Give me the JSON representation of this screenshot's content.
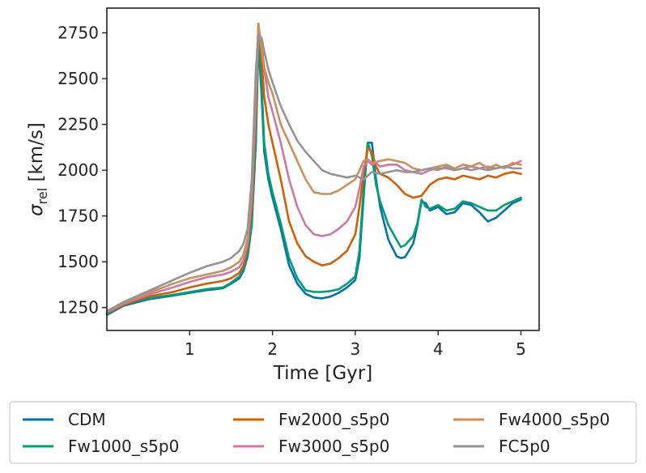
{
  "chart_data": {
    "type": "line",
    "title": "",
    "xlabel": "Time [Gyr]",
    "ylabel": "σ_rel [km/s]",
    "ylabel_symbol": "σ",
    "ylabel_subscript": "rel",
    "ylabel_unit": " [km/s]",
    "xlim": [
      0.0,
      5.22
    ],
    "ylim": [
      1125,
      2885
    ],
    "xticks": [
      1,
      2,
      3,
      4,
      5
    ],
    "xtick_labels": [
      "1",
      "2",
      "3",
      "4",
      "5"
    ],
    "yticks": [
      1250,
      1500,
      1750,
      2000,
      2250,
      2500,
      2750
    ],
    "ytick_labels": [
      "1250",
      "1500",
      "1750",
      "2000",
      "2250",
      "2500",
      "2750"
    ],
    "grid": false,
    "legend_position": "below, 3 columns",
    "series": [
      {
        "name": "CDM",
        "color": "#0072b2",
        "x": [
          0.0,
          0.2,
          0.5,
          0.8,
          1.0,
          1.2,
          1.4,
          1.5,
          1.6,
          1.65,
          1.7,
          1.75,
          1.8,
          1.83,
          1.87,
          1.9,
          1.95,
          2.0,
          2.1,
          2.2,
          2.3,
          2.4,
          2.5,
          2.6,
          2.7,
          2.8,
          2.9,
          3.0,
          3.05,
          3.1,
          3.15,
          3.2,
          3.25,
          3.3,
          3.4,
          3.5,
          3.55,
          3.6,
          3.7,
          3.75,
          3.8,
          3.85,
          3.9,
          4.0,
          4.1,
          4.2,
          4.3,
          4.4,
          4.5,
          4.6,
          4.7,
          4.8,
          4.9,
          5.0
        ],
        "y": [
          1210,
          1260,
          1295,
          1315,
          1330,
          1345,
          1355,
          1380,
          1410,
          1450,
          1530,
          1700,
          2150,
          2700,
          2400,
          2100,
          1950,
          1850,
          1680,
          1480,
          1380,
          1325,
          1305,
          1300,
          1310,
          1330,
          1360,
          1400,
          1520,
          1850,
          2150,
          2150,
          1950,
          1800,
          1620,
          1530,
          1520,
          1525,
          1600,
          1700,
          1830,
          1820,
          1780,
          1800,
          1760,
          1770,
          1820,
          1810,
          1770,
          1720,
          1740,
          1780,
          1820,
          1840
        ]
      },
      {
        "name": "Fw1000_s5p0",
        "color": "#009e73",
        "x": [
          0.0,
          0.2,
          0.5,
          0.8,
          1.0,
          1.2,
          1.4,
          1.5,
          1.6,
          1.65,
          1.7,
          1.75,
          1.8,
          1.83,
          1.87,
          1.9,
          1.95,
          2.0,
          2.1,
          2.2,
          2.3,
          2.4,
          2.5,
          2.6,
          2.7,
          2.8,
          2.9,
          3.0,
          3.05,
          3.1,
          3.15,
          3.2,
          3.25,
          3.3,
          3.4,
          3.5,
          3.55,
          3.6,
          3.7,
          3.75,
          3.8,
          3.85,
          3.9,
          4.0,
          4.1,
          4.2,
          4.3,
          4.4,
          4.5,
          4.6,
          4.7,
          4.8,
          4.9,
          5.0
        ],
        "y": [
          1215,
          1265,
          1300,
          1320,
          1335,
          1350,
          1360,
          1385,
          1420,
          1460,
          1550,
          1720,
          2200,
          2720,
          2450,
          2150,
          1980,
          1880,
          1710,
          1520,
          1410,
          1345,
          1335,
          1335,
          1340,
          1350,
          1380,
          1420,
          1560,
          1900,
          2150,
          2080,
          1920,
          1830,
          1700,
          1620,
          1580,
          1590,
          1640,
          1710,
          1840,
          1800,
          1790,
          1810,
          1780,
          1790,
          1830,
          1820,
          1800,
          1780,
          1780,
          1810,
          1830,
          1850
        ]
      },
      {
        "name": "Fw2000_s5p0",
        "color": "#d55e00",
        "x": [
          0.0,
          0.2,
          0.5,
          0.8,
          1.0,
          1.2,
          1.4,
          1.5,
          1.6,
          1.65,
          1.7,
          1.75,
          1.8,
          1.83,
          1.87,
          1.9,
          1.95,
          2.0,
          2.1,
          2.2,
          2.3,
          2.4,
          2.5,
          2.6,
          2.7,
          2.8,
          2.9,
          3.0,
          3.05,
          3.1,
          3.15,
          3.2,
          3.25,
          3.3,
          3.4,
          3.5,
          3.6,
          3.7,
          3.8,
          3.9,
          4.0,
          4.1,
          4.2,
          4.3,
          4.4,
          4.5,
          4.6,
          4.7,
          4.8,
          4.9,
          5.0
        ],
        "y": [
          1220,
          1265,
          1310,
          1335,
          1360,
          1380,
          1395,
          1410,
          1440,
          1480,
          1580,
          1800,
          2300,
          2800,
          2600,
          2400,
          2250,
          2150,
          1950,
          1720,
          1600,
          1530,
          1500,
          1480,
          1490,
          1520,
          1560,
          1650,
          1800,
          1980,
          2120,
          2100,
          2020,
          1980,
          1960,
          1920,
          1870,
          1850,
          1860,
          1920,
          1950,
          1960,
          1950,
          1970,
          1960,
          1950,
          1970,
          1960,
          1980,
          1990,
          1980
        ]
      },
      {
        "name": "Fw3000_s5p0",
        "color": "#cc79a7",
        "x": [
          0.0,
          0.2,
          0.5,
          0.8,
          1.0,
          1.2,
          1.4,
          1.5,
          1.6,
          1.65,
          1.7,
          1.75,
          1.8,
          1.83,
          1.87,
          1.9,
          1.95,
          2.0,
          2.1,
          2.2,
          2.3,
          2.4,
          2.5,
          2.6,
          2.7,
          2.8,
          2.9,
          3.0,
          3.05,
          3.1,
          3.15,
          3.2,
          3.25,
          3.3,
          3.4,
          3.5,
          3.6,
          3.7,
          3.8,
          3.9,
          4.0,
          4.1,
          4.2,
          4.3,
          4.4,
          4.5,
          4.6,
          4.7,
          4.8,
          4.9,
          5.0
        ],
        "y": [
          1225,
          1270,
          1320,
          1360,
          1390,
          1415,
          1430,
          1445,
          1470,
          1510,
          1600,
          1850,
          2400,
          2760,
          2700,
          2550,
          2400,
          2320,
          2150,
          1950,
          1800,
          1700,
          1650,
          1640,
          1650,
          1680,
          1720,
          1800,
          1900,
          2020,
          2050,
          2030,
          2040,
          2020,
          2030,
          2030,
          2000,
          1990,
          1980,
          2000,
          2010,
          2010,
          2000,
          2010,
          2020,
          2010,
          2020,
          2010,
          2020,
          2030,
          2050
        ]
      },
      {
        "name": "Fw4000_s5p0",
        "color": "#cc8f5a",
        "x": [
          0.0,
          0.2,
          0.5,
          0.8,
          1.0,
          1.2,
          1.4,
          1.5,
          1.6,
          1.65,
          1.7,
          1.75,
          1.8,
          1.83,
          1.87,
          1.9,
          1.95,
          2.0,
          2.1,
          2.2,
          2.3,
          2.4,
          2.5,
          2.6,
          2.7,
          2.8,
          2.9,
          3.0,
          3.05,
          3.1,
          3.15,
          3.2,
          3.3,
          3.4,
          3.5,
          3.6,
          3.7,
          3.8,
          3.9,
          4.0,
          4.1,
          4.2,
          4.3,
          4.4,
          4.5,
          4.6,
          4.7,
          4.8,
          4.9,
          5.0
        ],
        "y": [
          1230,
          1275,
          1330,
          1380,
          1410,
          1430,
          1450,
          1470,
          1500,
          1540,
          1630,
          1900,
          2500,
          2800,
          2650,
          2560,
          2480,
          2420,
          2250,
          2150,
          2050,
          1950,
          1880,
          1870,
          1870,
          1890,
          1920,
          1950,
          2000,
          2050,
          2060,
          2040,
          2050,
          2060,
          2050,
          2040,
          2010,
          2000,
          2010,
          2020,
          2030,
          2010,
          2030,
          2020,
          2040,
          2010,
          2030,
          2010,
          2040,
          2030
        ]
      },
      {
        "name": "FC5p0",
        "color": "#949494",
        "x": [
          0.0,
          0.2,
          0.5,
          0.8,
          1.0,
          1.2,
          1.4,
          1.5,
          1.6,
          1.65,
          1.7,
          1.75,
          1.8,
          1.83,
          1.87,
          1.9,
          1.95,
          2.0,
          2.1,
          2.2,
          2.3,
          2.4,
          2.5,
          2.6,
          2.7,
          2.8,
          2.9,
          3.0,
          3.1,
          3.2,
          3.3,
          3.4,
          3.5,
          3.6,
          3.7,
          3.8,
          3.9,
          4.0,
          4.1,
          4.2,
          4.3,
          4.4,
          4.5,
          4.6,
          4.7,
          4.8,
          4.9,
          5.0
        ],
        "y": [
          1230,
          1280,
          1340,
          1400,
          1440,
          1475,
          1500,
          1520,
          1560,
          1600,
          1680,
          1950,
          2550,
          2740,
          2720,
          2650,
          2550,
          2480,
          2350,
          2250,
          2160,
          2100,
          2050,
          2000,
          1980,
          1970,
          1960,
          1970,
          1950,
          1990,
          1980,
          1990,
          2000,
          1990,
          1990,
          2000,
          2010,
          2000,
          2020,
          2000,
          2010,
          2000,
          2010,
          2000,
          2010,
          2020,
          2010,
          2010
        ]
      }
    ]
  }
}
